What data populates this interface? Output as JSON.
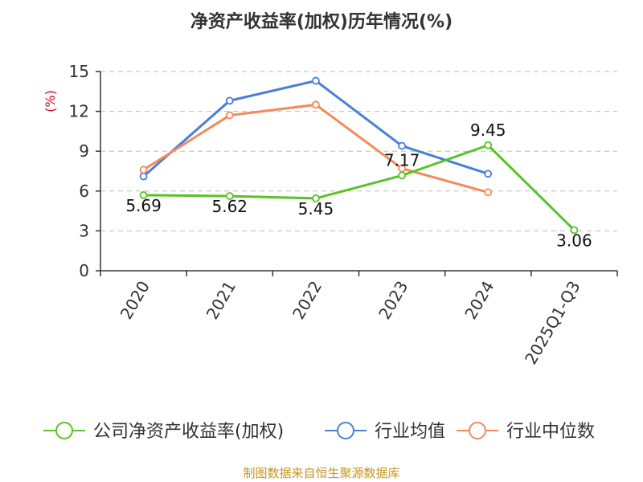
{
  "chart_data": {
    "type": "line",
    "title": "净资产收益率(加权)历年情况(%)",
    "ylabel": "(%)",
    "ylim": [
      0,
      15
    ],
    "yticks": [
      0,
      3,
      6,
      9,
      12,
      15
    ],
    "categories": [
      "2020",
      "2021",
      "2022",
      "2023",
      "2024",
      "2025Q1-Q3"
    ],
    "grid": true,
    "legend_position": "bottom",
    "series": [
      {
        "name": "公司净资产收益率(加权)",
        "color": "#5ac227",
        "values": [
          5.69,
          5.62,
          5.45,
          7.17,
          9.45,
          3.06
        ],
        "labels": [
          "5.69",
          "5.62",
          "5.45",
          "7.17",
          "9.45",
          "3.06"
        ]
      },
      {
        "name": "行业均值",
        "color": "#4a7fd8",
        "values": [
          7.1,
          12.8,
          14.3,
          9.4,
          7.3,
          null
        ]
      },
      {
        "name": "行业中位数",
        "color": "#f38a5a",
        "values": [
          7.6,
          11.7,
          12.5,
          7.7,
          5.9,
          null
        ]
      }
    ]
  },
  "source": "制图数据来自恒生聚源数据库"
}
